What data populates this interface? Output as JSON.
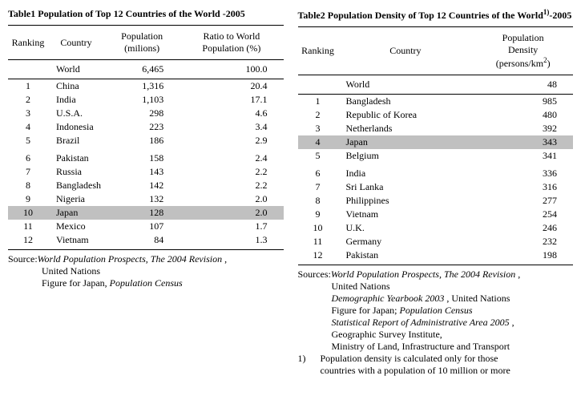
{
  "table1": {
    "title": "Table1 Population of Top 12 Countries of the World -2005",
    "headers": {
      "rank": "Ranking",
      "country": "Country",
      "pop": "Population (milions)",
      "ratio": "Ratio to World Population (%)"
    },
    "world": {
      "country": "World",
      "pop": "6,465",
      "ratio": "100.0"
    },
    "rows": [
      {
        "rank": "1",
        "country": "China",
        "pop": "1,316",
        "ratio": "20.4",
        "hl": false
      },
      {
        "rank": "2",
        "country": "India",
        "pop": "1,103",
        "ratio": "17.1",
        "hl": false
      },
      {
        "rank": "3",
        "country": "U.S.A.",
        "pop": "298",
        "ratio": "4.6",
        "hl": false
      },
      {
        "rank": "4",
        "country": "Indonesia",
        "pop": "223",
        "ratio": "3.4",
        "hl": false
      },
      {
        "rank": "5",
        "country": "Brazil",
        "pop": "186",
        "ratio": "2.9",
        "hl": false
      },
      {
        "rank": "6",
        "country": "Pakistan",
        "pop": "158",
        "ratio": "2.4",
        "hl": false
      },
      {
        "rank": "7",
        "country": "Russia",
        "pop": "143",
        "ratio": "2.2",
        "hl": false
      },
      {
        "rank": "8",
        "country": "Bangladesh",
        "pop": "142",
        "ratio": "2.2",
        "hl": false
      },
      {
        "rank": "9",
        "country": "Nigeria",
        "pop": "132",
        "ratio": "2.0",
        "hl": false
      },
      {
        "rank": "10",
        "country": "Japan",
        "pop": "128",
        "ratio": "2.0",
        "hl": true
      },
      {
        "rank": "11",
        "country": "Mexico",
        "pop": "107",
        "ratio": "1.7",
        "hl": false
      },
      {
        "rank": "12",
        "country": "Vietnam",
        "pop": "84",
        "ratio": "1.3",
        "hl": false
      }
    ],
    "highlight_color": "#c0c0c0",
    "source_label": "Source:",
    "sources": [
      {
        "text": "World Population Prospects, The 2004 Revision",
        "italic": true,
        "trail": " ,"
      },
      {
        "text": "United Nations",
        "italic": false
      },
      {
        "text_pre": "Figure for Japan, ",
        "text": "Population Census",
        "italic": true
      }
    ]
  },
  "table2": {
    "title_main": "Table2 Population Density of Top 12 Countries of the World",
    "title_sup": "1)",
    "title_suffix": "-2005",
    "headers": {
      "rank": "Ranking",
      "country": "Country",
      "density_line1": "Population",
      "density_line2": "Density",
      "density_line3_pre": "(persons/km",
      "density_line3_sup": "2",
      "density_line3_post": ")"
    },
    "world": {
      "country": "World",
      "density": "48"
    },
    "rows": [
      {
        "rank": "1",
        "country": "Bangladesh",
        "density": "985",
        "hl": false
      },
      {
        "rank": "2",
        "country": "Republic of Korea",
        "density": "480",
        "hl": false
      },
      {
        "rank": "3",
        "country": "Netherlands",
        "density": "392",
        "hl": false
      },
      {
        "rank": "4",
        "country": "Japan",
        "density": "343",
        "hl": true
      },
      {
        "rank": "5",
        "country": "Belgium",
        "density": "341",
        "hl": false
      },
      {
        "rank": "6",
        "country": "India",
        "density": "336",
        "hl": false
      },
      {
        "rank": "7",
        "country": "Sri Lanka",
        "density": "316",
        "hl": false
      },
      {
        "rank": "8",
        "country": "Philippines",
        "density": "277",
        "hl": false
      },
      {
        "rank": "9",
        "country": "Vietnam",
        "density": "254",
        "hl": false
      },
      {
        "rank": "10",
        "country": "U.K.",
        "density": "246",
        "hl": false
      },
      {
        "rank": "11",
        "country": "Germany",
        "density": "232",
        "hl": false
      },
      {
        "rank": "12",
        "country": "Pakistan",
        "density": "198",
        "hl": false
      }
    ],
    "highlight_color": "#c0c0c0",
    "source_label": "Sources:",
    "sources": [
      {
        "text": "World Population Prospects, The 2004 Revision",
        "italic": true,
        "trail": " ,"
      },
      {
        "text": "United Nations",
        "italic": false
      },
      {
        "text": "Demographic Yearbook 2003",
        "italic": true,
        "trail": " , United Nations"
      },
      {
        "text_pre": "Figure for Japan; ",
        "text": "Population Census",
        "italic": true
      },
      {
        "text": "Statistical Report of Administrative Area 2005",
        "italic": true,
        "trail": " ,"
      },
      {
        "text": " Geographic Survey Institute,",
        "italic": false
      },
      {
        "text": " Ministry of Land, Infrastructure and Transport",
        "italic": false
      }
    ],
    "note": {
      "num": "1)",
      "line1": "Population density is calculated only for those",
      "line2": "countries with a population of 10 million or more"
    }
  }
}
